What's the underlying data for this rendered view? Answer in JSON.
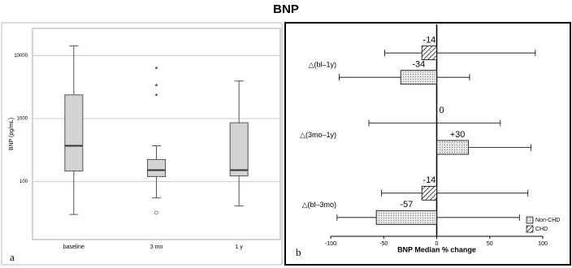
{
  "title": "BNP",
  "chart_data": [
    {
      "type": "box",
      "panel": "a",
      "y_label": "BNP (pg/mL)",
      "log_scale": true,
      "grid": true,
      "categories": [
        "baseline",
        "3 mo",
        "1 y"
      ],
      "boxes": [
        {
          "min": 30,
          "q1": 147,
          "median": 370,
          "q3": 2380,
          "max": 14300,
          "outliers": [],
          "extremes": []
        },
        {
          "min": 55,
          "q1": 120,
          "median": 152,
          "q3": 224,
          "max": 370,
          "outliers": [
            32
          ],
          "extremes": [
            6380,
            3400,
            2380
          ]
        },
        {
          "min": 41,
          "q1": 123,
          "median": 152,
          "q3": 860,
          "max": 3950,
          "outliers": [],
          "extremes": []
        }
      ],
      "color": "#d3d3d3",
      "ylim": [
        12,
        27000
      ],
      "yticks": [
        100,
        1000,
        10000
      ]
    },
    {
      "type": "hbar",
      "panel": "b",
      "x_label": "BNP Median % change",
      "categories": [
        "△(bl–1y)",
        "△(3mo–1y)",
        "△(bl–3mo)"
      ],
      "series": [
        {
          "name": "Non-CHD",
          "color": "#d9d9d9",
          "pattern": "dots",
          "values": [
            -34,
            30,
            -57
          ],
          "value_labels": [
            "-34",
            "+30",
            "-57"
          ],
          "ci_low": [
            -92,
            0,
            -94
          ],
          "ci_high": [
            31,
            89,
            78
          ]
        },
        {
          "name": "CHD",
          "color": "#ffffff",
          "pattern": "hatch",
          "values": [
            -14,
            0,
            -14
          ],
          "ci_low": [
            -49,
            -64,
            -52
          ],
          "ci_high": [
            93,
            60,
            86
          ]
        }
      ],
      "legend": "lower right",
      "xlim": [
        -100,
        100
      ],
      "xticks": [
        -100,
        -50,
        0,
        50,
        100
      ]
    }
  ]
}
